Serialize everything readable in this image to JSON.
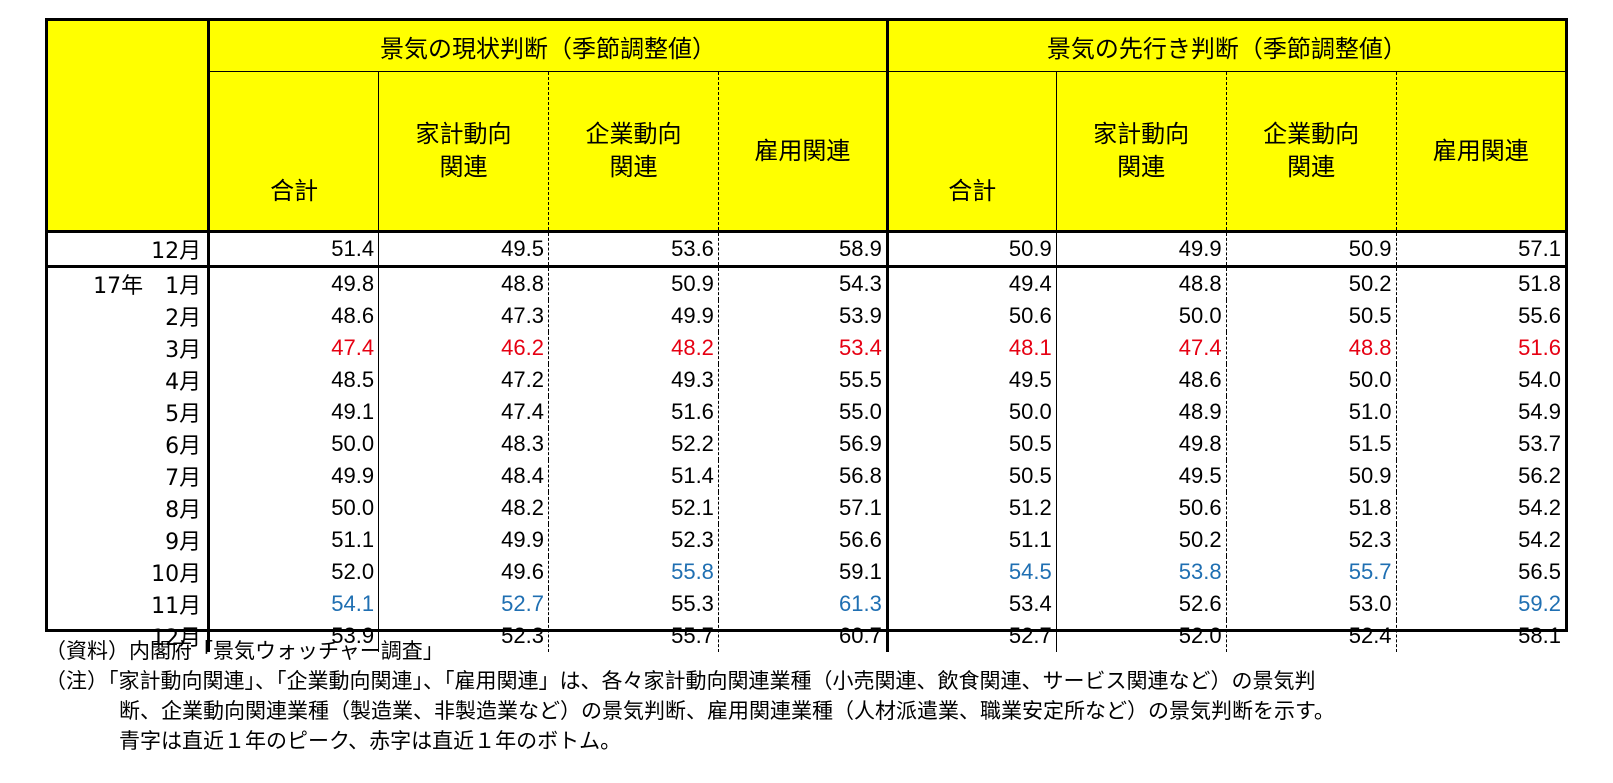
{
  "table": {
    "section_current": "景気の現状判断（季節調整値）",
    "section_future": "景気の先行き判断（季節調整値）",
    "col_total": "合計",
    "col_household_l1": "家計動向",
    "col_household_l2": "関連",
    "col_business_l1": "企業動向",
    "col_business_l2": "関連",
    "col_employment": "雇用関連",
    "rows": [
      {
        "label": "12月",
        "v": [
          "51.4",
          "49.5",
          "53.6",
          "58.9",
          "50.9",
          "49.9",
          "50.9",
          "57.1"
        ],
        "c": [
          "",
          "",
          "",
          "",
          "",
          "",
          "",
          ""
        ]
      },
      {
        "label": "17年　1月",
        "v": [
          "49.8",
          "48.8",
          "50.9",
          "54.3",
          "49.4",
          "48.8",
          "50.2",
          "51.8"
        ],
        "c": [
          "",
          "",
          "",
          "",
          "",
          "",
          "",
          ""
        ]
      },
      {
        "label": "2月",
        "v": [
          "48.6",
          "47.3",
          "49.9",
          "53.9",
          "50.6",
          "50.0",
          "50.5",
          "55.6"
        ],
        "c": [
          "",
          "",
          "",
          "",
          "",
          "",
          "",
          ""
        ]
      },
      {
        "label": "3月",
        "v": [
          "47.4",
          "46.2",
          "48.2",
          "53.4",
          "48.1",
          "47.4",
          "48.8",
          "51.6"
        ],
        "c": [
          "red",
          "red",
          "red",
          "red",
          "red",
          "red",
          "red",
          "red"
        ]
      },
      {
        "label": "4月",
        "v": [
          "48.5",
          "47.2",
          "49.3",
          "55.5",
          "49.5",
          "48.6",
          "50.0",
          "54.0"
        ],
        "c": [
          "",
          "",
          "",
          "",
          "",
          "",
          "",
          ""
        ]
      },
      {
        "label": "5月",
        "v": [
          "49.1",
          "47.4",
          "51.6",
          "55.0",
          "50.0",
          "48.9",
          "51.0",
          "54.9"
        ],
        "c": [
          "",
          "",
          "",
          "",
          "",
          "",
          "",
          ""
        ]
      },
      {
        "label": "6月",
        "v": [
          "50.0",
          "48.3",
          "52.2",
          "56.9",
          "50.5",
          "49.8",
          "51.5",
          "53.7"
        ],
        "c": [
          "",
          "",
          "",
          "",
          "",
          "",
          "",
          ""
        ]
      },
      {
        "label": "7月",
        "v": [
          "49.9",
          "48.4",
          "51.4",
          "56.8",
          "50.5",
          "49.5",
          "50.9",
          "56.2"
        ],
        "c": [
          "",
          "",
          "",
          "",
          "",
          "",
          "",
          ""
        ]
      },
      {
        "label": "8月",
        "v": [
          "50.0",
          "48.2",
          "52.1",
          "57.1",
          "51.2",
          "50.6",
          "51.8",
          "54.2"
        ],
        "c": [
          "",
          "",
          "",
          "",
          "",
          "",
          "",
          ""
        ]
      },
      {
        "label": "9月",
        "v": [
          "51.1",
          "49.9",
          "52.3",
          "56.6",
          "51.1",
          "50.2",
          "52.3",
          "54.2"
        ],
        "c": [
          "",
          "",
          "",
          "",
          "",
          "",
          "",
          ""
        ]
      },
      {
        "label": "10月",
        "v": [
          "52.0",
          "49.6",
          "55.8",
          "59.1",
          "54.5",
          "53.8",
          "55.7",
          "56.5"
        ],
        "c": [
          "",
          "",
          "blue",
          "",
          "blue",
          "blue",
          "blue",
          ""
        ]
      },
      {
        "label": "11月",
        "v": [
          "54.1",
          "52.7",
          "55.3",
          "61.3",
          "53.4",
          "52.6",
          "53.0",
          "59.2"
        ],
        "c": [
          "blue",
          "blue",
          "",
          "blue",
          "",
          "",
          "",
          "blue"
        ]
      },
      {
        "label": "12月",
        "v": [
          "53.9",
          "52.3",
          "55.7",
          "60.7",
          "52.7",
          "52.0",
          "52.4",
          "58.1"
        ],
        "c": [
          "",
          "",
          "",
          "",
          "",
          "",
          "",
          ""
        ]
      }
    ]
  },
  "notes": {
    "source": "（資料）内閣府「景気ウォッチャー調査」",
    "note_line1": "（注）「家計動向関連」、「企業動向関連」、「雇用関連」は、各々家計動向関連業種（小売関連、飲食関連、サービス関連など）の景気判",
    "note_line2": "断、企業動向関連業種（製造業、非製造業など）の景気判断、雇用関連業種（人材派遣業、職業安定所など）の景気判断を示す。",
    "note_line3": "青字は直近１年のピーク、赤字は直近１年のボトム。"
  },
  "colors": {
    "header_bg": "#ffff00",
    "peak_blue": "#1f6fb2",
    "bottom_red": "#e60012"
  }
}
